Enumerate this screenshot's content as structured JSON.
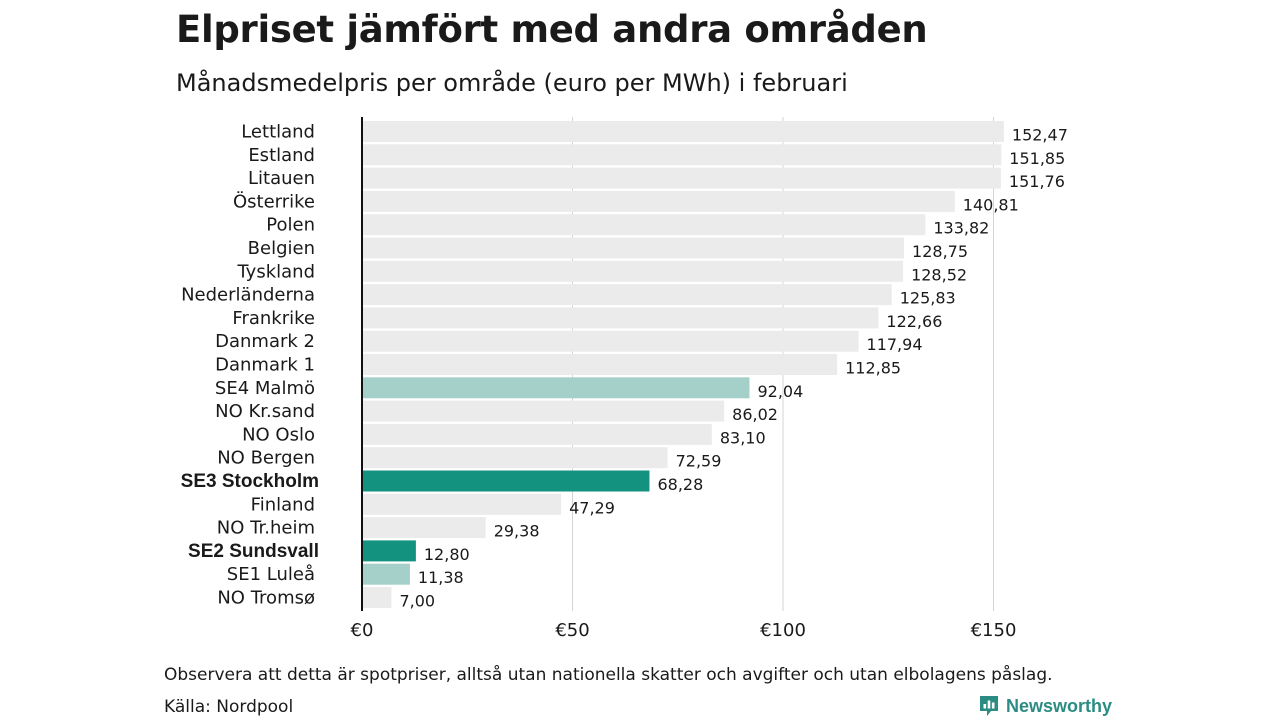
{
  "title": "Elpriset jämfört med andra områden",
  "subtitle": "Månadsmedelpris per område (euro per MWh) i februari",
  "footnote": "Observera att detta är spotpriser, alltså utan nationella skatter och avgifter och utan elbolagens påslag.",
  "source": "Källa: Nordpool",
  "brand": {
    "name": "Newsworthy",
    "icon": "newsworthy-logo-icon"
  },
  "colors": {
    "default_bar": "#ebebeb",
    "se_light": "#a5d0ca",
    "se_dark": "#13927f",
    "grid": "#d4d4d4",
    "axis": "#111111",
    "brand": "#2b8c83"
  },
  "chart_data": {
    "type": "bar",
    "orientation": "horizontal",
    "categories": [
      "Lettland",
      "Estland",
      "Litauen",
      "Österrike",
      "Polen",
      "Belgien",
      "Tyskland",
      "Nederländerna",
      "Frankrike",
      "Danmark 2",
      "Danmark 1",
      "SE4 Malmö",
      "NO Kr.sand",
      "NO Oslo",
      "NO Bergen",
      "SE3 Stockholm",
      "Finland",
      "NO Tr.heim",
      "SE2 Sundsvall",
      "SE1 Luleå",
      "NO Tromsø"
    ],
    "values": [
      152.47,
      151.85,
      151.76,
      140.81,
      133.82,
      128.75,
      128.52,
      125.83,
      122.66,
      117.94,
      112.85,
      92.04,
      86.02,
      83.1,
      72.59,
      68.28,
      47.29,
      29.38,
      12.8,
      11.38,
      7.0
    ],
    "value_labels": [
      "152,47",
      "151,85",
      "151,76",
      "140,81",
      "133,82",
      "128,75",
      "128,52",
      "125,83",
      "122,66",
      "117,94",
      "112,85",
      "92,04",
      "86,02",
      "83,10",
      "72,59",
      "68,28",
      "47,29",
      "29,38",
      "12,80",
      "11,38",
      "7,00"
    ],
    "bar_styles": [
      "default",
      "default",
      "default",
      "default",
      "default",
      "default",
      "default",
      "default",
      "default",
      "default",
      "default",
      "se_light",
      "default",
      "default",
      "default",
      "se_dark",
      "default",
      "default",
      "se_dark",
      "se_light",
      "default"
    ],
    "bold_labels": [
      "SE3 Stockholm",
      "SE2 Sundsvall"
    ],
    "xlim": [
      0,
      160
    ],
    "x_ticks": [
      0,
      50,
      100,
      150
    ],
    "x_tick_labels": [
      "€0",
      "€50",
      "€100",
      "€150"
    ],
    "xlabel": "",
    "ylabel": "",
    "grid": "vertical",
    "legend": "none"
  }
}
